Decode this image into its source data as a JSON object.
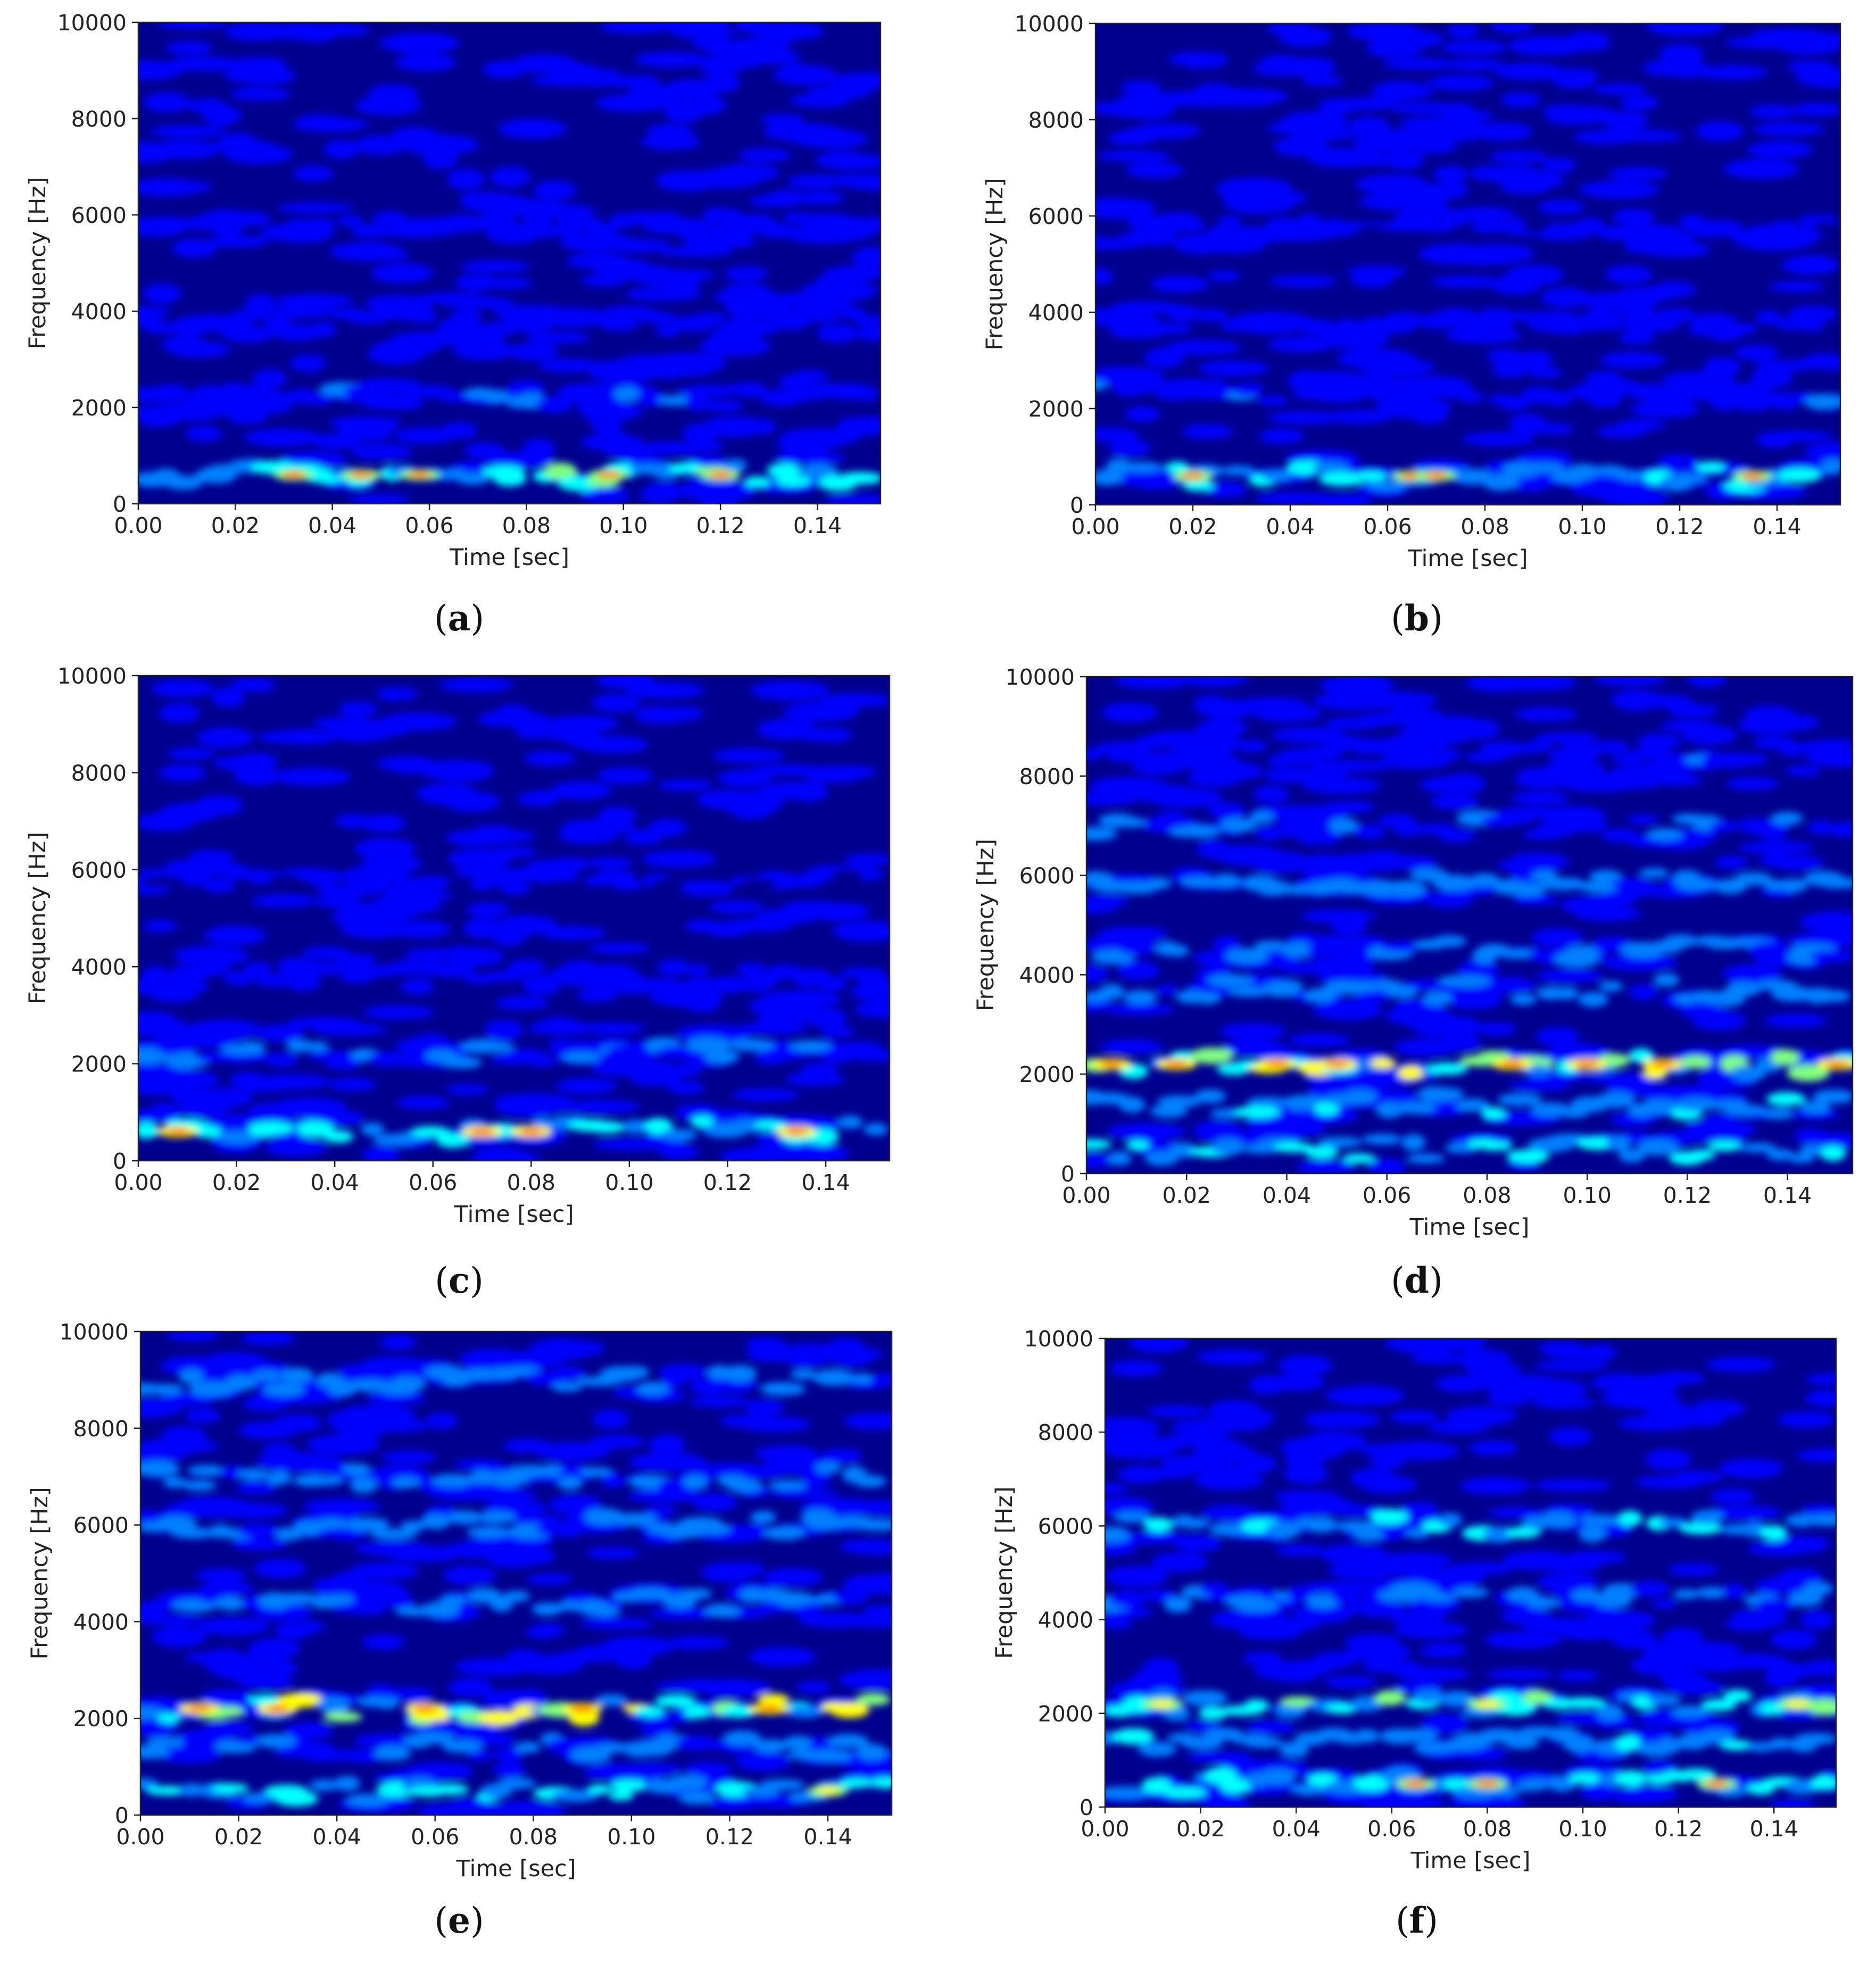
{
  "colors": {
    "background": "#00008f",
    "axis": "#222222",
    "colormap": [
      "#00008f",
      "#0000ff",
      "#0080ff",
      "#00ffff",
      "#80ff80",
      "#ffff00",
      "#ff8000",
      "#ff0000"
    ]
  },
  "chart_data": [
    {
      "id": "a",
      "type": "heatmap",
      "colormap": "jet",
      "caption": "(a)",
      "caption_letter": "a",
      "xlabel": "Time [sec]",
      "ylabel": "Frequency [Hz]",
      "xlim": [
        0,
        0.153
      ],
      "ylim": [
        0,
        10000
      ],
      "x_ticks": [
        "0.00",
        "0.02",
        "0.04",
        "0.06",
        "0.08",
        "0.10",
        "0.12",
        "0.14"
      ],
      "y_ticks": [
        "0",
        "2000",
        "4000",
        "6000",
        "8000",
        "10000"
      ],
      "bands": [
        {
          "freq": 600,
          "intensity": 0.55,
          "hot_times": [
            0.032,
            0.046,
            0.058,
            0.097,
            0.12
          ],
          "hot_intensity": 0.85
        },
        {
          "freq": 2200,
          "intensity": 0.22
        },
        {
          "freq": 3800,
          "intensity": 0.12
        },
        {
          "freq": 5800,
          "intensity": 0.1
        }
      ]
    },
    {
      "id": "b",
      "type": "heatmap",
      "colormap": "jet",
      "caption": "(b)",
      "caption_letter": "b",
      "xlabel": "Time [sec]",
      "ylabel": "Frequency [Hz]",
      "xlim": [
        0,
        0.153
      ],
      "ylim": [
        0,
        10000
      ],
      "x_ticks": [
        "0.00",
        "0.02",
        "0.04",
        "0.06",
        "0.08",
        "0.10",
        "0.12",
        "0.14"
      ],
      "y_ticks": [
        "0",
        "2000",
        "4000",
        "6000",
        "8000",
        "10000"
      ],
      "bands": [
        {
          "freq": 600,
          "intensity": 0.45,
          "hot_times": [
            0.02,
            0.065,
            0.07,
            0.135
          ],
          "hot_intensity": 0.85
        },
        {
          "freq": 2300,
          "intensity": 0.2
        },
        {
          "freq": 3800,
          "intensity": 0.12
        },
        {
          "freq": 5800,
          "intensity": 0.08
        }
      ]
    },
    {
      "id": "c",
      "type": "heatmap",
      "colormap": "jet",
      "caption": "(c)",
      "caption_letter": "c",
      "xlabel": "Time [sec]",
      "ylabel": "Frequency [Hz]",
      "xlim": [
        0,
        0.153
      ],
      "ylim": [
        0,
        10000
      ],
      "x_ticks": [
        "0.00",
        "0.02",
        "0.04",
        "0.06",
        "0.08",
        "0.10",
        "0.12",
        "0.14"
      ],
      "y_ticks": [
        "0",
        "2000",
        "4000",
        "6000",
        "8000",
        "10000"
      ],
      "bands": [
        {
          "freq": 600,
          "intensity": 0.5,
          "hot_times": [
            0.008,
            0.07,
            0.08,
            0.134
          ],
          "hot_intensity": 0.88
        },
        {
          "freq": 2200,
          "intensity": 0.28
        },
        {
          "freq": 3800,
          "intensity": 0.12
        },
        {
          "freq": 5800,
          "intensity": 0.08
        }
      ]
    },
    {
      "id": "d",
      "type": "heatmap",
      "colormap": "jet",
      "caption": "(d)",
      "caption_letter": "d",
      "xlabel": "Time [sec]",
      "ylabel": "Frequency [Hz]",
      "xlim": [
        0,
        0.153
      ],
      "ylim": [
        0,
        10000
      ],
      "x_ticks": [
        "0.00",
        "0.02",
        "0.04",
        "0.06",
        "0.08",
        "0.10",
        "0.12",
        "0.14"
      ],
      "y_ticks": [
        "0",
        "2000",
        "4000",
        "6000",
        "8000",
        "10000"
      ],
      "bands": [
        {
          "freq": 500,
          "intensity": 0.45
        },
        {
          "freq": 1400,
          "intensity": 0.4
        },
        {
          "freq": 2200,
          "intensity": 0.6,
          "hot_times": [
            0.005,
            0.018,
            0.038,
            0.05,
            0.085,
            0.1,
            0.115,
            0.15
          ],
          "hot_intensity": 0.9
        },
        {
          "freq": 3700,
          "intensity": 0.35
        },
        {
          "freq": 4500,
          "intensity": 0.3
        },
        {
          "freq": 5900,
          "intensity": 0.35
        },
        {
          "freq": 7000,
          "intensity": 0.25
        },
        {
          "freq": 8500,
          "intensity": 0.2
        }
      ]
    },
    {
      "id": "e",
      "type": "heatmap",
      "colormap": "jet",
      "caption": "(e)",
      "caption_letter": "e",
      "xlabel": "Time [sec]",
      "ylabel": "Frequency [Hz]",
      "xlim": [
        0,
        0.153
      ],
      "ylim": [
        0,
        10000
      ],
      "x_ticks": [
        "0.00",
        "0.02",
        "0.04",
        "0.06",
        "0.08",
        "0.10",
        "0.12",
        "0.14"
      ],
      "y_ticks": [
        "0",
        "2000",
        "4000",
        "6000",
        "8000",
        "10000"
      ],
      "bands": [
        {
          "freq": 500,
          "intensity": 0.45,
          "hot_times": [
            0.14
          ],
          "hot_intensity": 0.8
        },
        {
          "freq": 1400,
          "intensity": 0.3
        },
        {
          "freq": 2200,
          "intensity": 0.65,
          "hot_times": [
            0.012,
            0.028,
            0.058,
            0.09,
            0.128
          ],
          "hot_intensity": 0.92
        },
        {
          "freq": 4400,
          "intensity": 0.3
        },
        {
          "freq": 6000,
          "intensity": 0.35
        },
        {
          "freq": 7000,
          "intensity": 0.3
        },
        {
          "freq": 9000,
          "intensity": 0.35
        }
      ]
    },
    {
      "id": "f",
      "type": "heatmap",
      "colormap": "jet",
      "caption": "(f)",
      "caption_letter": "f",
      "xlabel": "Time [sec]",
      "ylabel": "Frequency [Hz]",
      "xlim": [
        0,
        0.153
      ],
      "ylim": [
        0,
        10000
      ],
      "x_ticks": [
        "0.00",
        "0.02",
        "0.04",
        "0.06",
        "0.08",
        "0.10",
        "0.12",
        "0.14"
      ],
      "y_ticks": [
        "0",
        "2000",
        "4000",
        "6000",
        "8000",
        "10000"
      ],
      "bands": [
        {
          "freq": 500,
          "intensity": 0.5,
          "hot_times": [
            0.065,
            0.08,
            0.128
          ],
          "hot_intensity": 0.82
        },
        {
          "freq": 1400,
          "intensity": 0.4
        },
        {
          "freq": 2200,
          "intensity": 0.55,
          "hot_times": [
            0.012,
            0.08,
            0.145
          ],
          "hot_intensity": 0.8
        },
        {
          "freq": 4500,
          "intensity": 0.3
        },
        {
          "freq": 6000,
          "intensity": 0.45
        }
      ]
    }
  ]
}
